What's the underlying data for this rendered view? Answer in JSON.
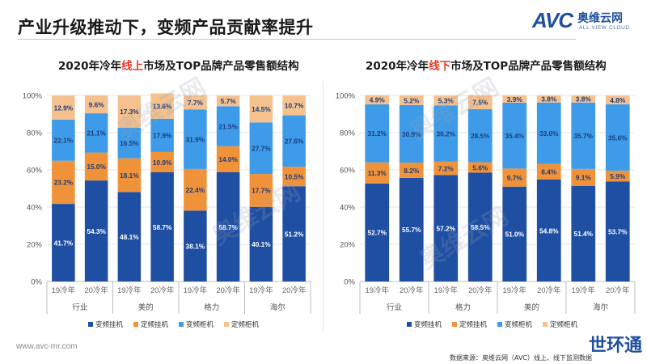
{
  "header": {
    "title": "产业升级推动下，变频产品贡献率提升",
    "logo_avc": "AVC",
    "logo_cn": "奥维云网",
    "logo_en": "ALL VIEW CLOUD"
  },
  "footer": {
    "website": "www.avc-mr.com",
    "source": "数据来源：奥维云网（AVC）线上、线下监测数据",
    "stamp": "世环通"
  },
  "watermark": {
    "cn": "奥维云网",
    "en": "ALL VIEW CLOUD"
  },
  "colors": {
    "变频挂机": "#1f4fa3",
    "定频挂机": "#f0923a",
    "变频柜机": "#3d9be9",
    "定频柜机": "#f5c18f"
  },
  "chart_data": [
    {
      "type": "bar",
      "stacked": true,
      "percent": true,
      "title_parts": [
        "2020年冷年",
        "线上",
        "市场及TOP品牌产品零售额结构"
      ],
      "ylim": [
        0,
        100
      ],
      "yticks": [
        "0%",
        "20%",
        "40%",
        "60%",
        "80%",
        "100%"
      ],
      "categories": [
        "19冷年",
        "20冷年",
        "19冷年",
        "20冷年",
        "19冷年",
        "20冷年",
        "19冷年",
        "20冷年"
      ],
      "groups": [
        "行业",
        "美的",
        "格力",
        "海尔"
      ],
      "series": [
        {
          "name": "变频挂机",
          "values": [
            41.7,
            54.3,
            48.1,
            58.7,
            38.1,
            58.7,
            40.1,
            51.2
          ],
          "labels": [
            "41.7%",
            "54.3%",
            "48.1%",
            "58.7%",
            "38.1%",
            "58.7%",
            "40.1%",
            "51.2%"
          ]
        },
        {
          "name": "定频挂机",
          "values": [
            23.2,
            15.0,
            18.1,
            10.9,
            22.4,
            14.0,
            17.7,
            10.5
          ],
          "labels": [
            "23.2%",
            "15.0%",
            "18.1%",
            "10.9%",
            "22.4%",
            "14.0%",
            "17.7%",
            "10.5%"
          ]
        },
        {
          "name": "变频柜机",
          "values": [
            22.1,
            21.1,
            16.5,
            17.9,
            31.9,
            21.5,
            27.7,
            27.6
          ],
          "labels": [
            "22.1%",
            "21.1%",
            "16.5%",
            "17.9%",
            "31.9%",
            "21.5%",
            "27.7%",
            "27.6%"
          ]
        },
        {
          "name": "定频柜机",
          "values": [
            12.9,
            9.6,
            17.3,
            13.6,
            7.7,
            5.7,
            14.5,
            10.7
          ],
          "labels": [
            "12.9%",
            "9.6%",
            "17.3%",
            "13.6%",
            "7.7%",
            "5.7%",
            "14.5%",
            "10.7%"
          ]
        }
      ],
      "legend": [
        "变频挂机",
        "定频挂机",
        "变频柜机",
        "定频柜机"
      ],
      "legend_position": "bottom",
      "grid": true
    },
    {
      "type": "bar",
      "stacked": true,
      "percent": true,
      "title_parts": [
        "2020年冷年",
        "线下",
        "市场及TOP品牌产品零售额结构"
      ],
      "ylim": [
        0,
        100
      ],
      "yticks": [
        "0%",
        "20%",
        "40%",
        "60%",
        "80%",
        "100%"
      ],
      "categories": [
        "19冷年",
        "20冷年",
        "19冷年",
        "20冷年",
        "19冷年",
        "20冷年",
        "19冷年",
        "20冷年"
      ],
      "groups": [
        "行业",
        "格力",
        "美的",
        "海尔"
      ],
      "series": [
        {
          "name": "变频挂机",
          "values": [
            52.7,
            55.7,
            57.2,
            58.5,
            51.0,
            54.8,
            51.4,
            53.7
          ],
          "labels": [
            "52.7%",
            "55.7%",
            "57.2%",
            "58.5%",
            "51.0%",
            "54.8%",
            "51.4%",
            "53.7%"
          ]
        },
        {
          "name": "定频挂机",
          "values": [
            11.3,
            8.2,
            7.2,
            5.6,
            9.7,
            8.4,
            9.1,
            5.9
          ],
          "labels": [
            "11.3%",
            "8.2%",
            "7.2%",
            "5.6%",
            "9.7%",
            "8.4%",
            "9.1%",
            "5.9%"
          ]
        },
        {
          "name": "变频柜机",
          "values": [
            31.2,
            30.9,
            30.2,
            28.5,
            35.4,
            33.0,
            35.7,
            35.6
          ],
          "labels": [
            "31.2%",
            "30.9%",
            "30.2%",
            "28.5%",
            "35.4%",
            "33.0%",
            "35.7%",
            "35.6%"
          ]
        },
        {
          "name": "定频柜机",
          "values": [
            4.9,
            5.2,
            5.3,
            7.5,
            3.9,
            3.8,
            3.8,
            4.8
          ],
          "labels": [
            "4.9%",
            "5.2%",
            "5.3%",
            "7.5%",
            "3.9%",
            "3.8%",
            "3.8%",
            "4.8%"
          ]
        }
      ],
      "legend": [
        "变频挂机",
        "定频挂机",
        "变频柜机",
        "定频柜机"
      ],
      "legend_position": "bottom",
      "grid": true
    }
  ]
}
